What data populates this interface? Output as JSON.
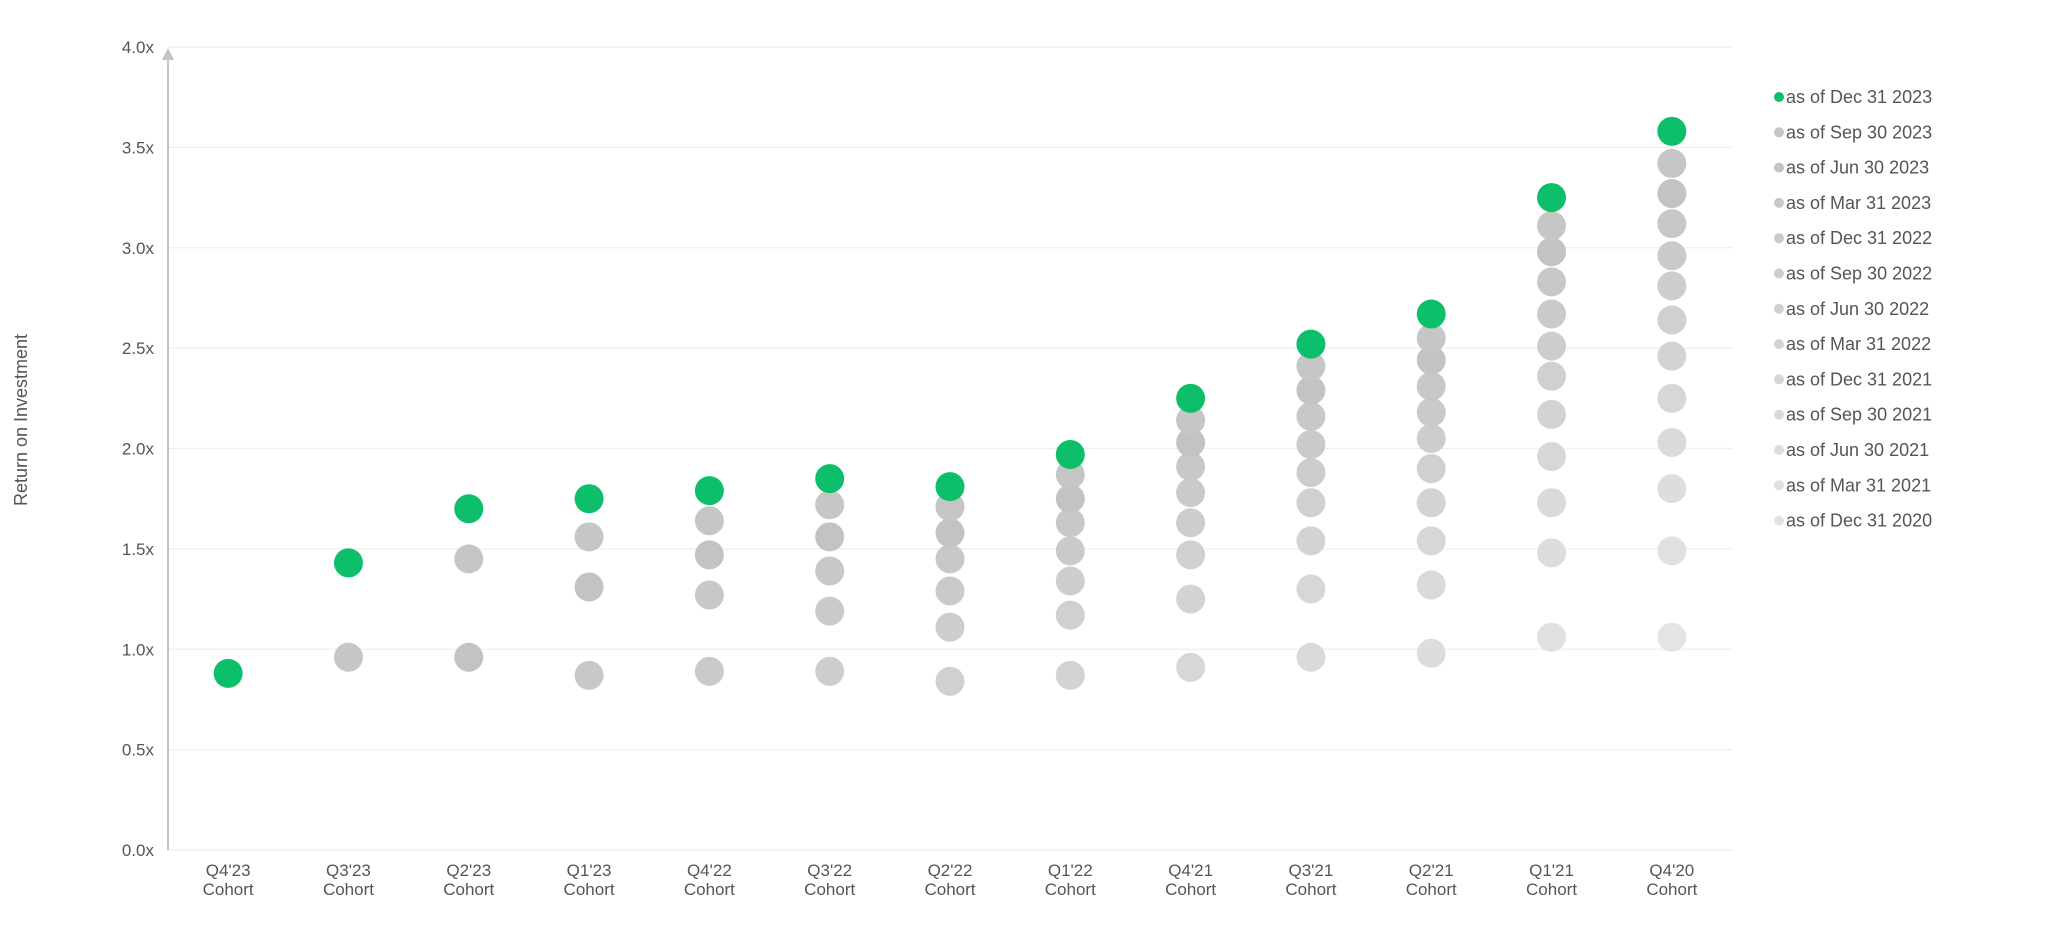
{
  "chart_data": {
    "type": "scatter",
    "ylabel": "Return on Investment",
    "ylim": [
      0,
      4
    ],
    "yticks": [
      "0.0x",
      "0.5x",
      "1.0x",
      "1.5x",
      "2.0x",
      "2.5x",
      "3.0x",
      "3.5x",
      "4.0x"
    ],
    "ytick_values": [
      0,
      0.5,
      1,
      1.5,
      2,
      2.5,
      3,
      3.5,
      4
    ],
    "grid": true,
    "legend_placement": "right",
    "categories": [
      [
        "Q4'23",
        "Cohort"
      ],
      [
        "Q3'23",
        "Cohort"
      ],
      [
        "Q2'23",
        "Cohort"
      ],
      [
        "Q1'23",
        "Cohort"
      ],
      [
        "Q4'22",
        "Cohort"
      ],
      [
        "Q3'22",
        "Cohort"
      ],
      [
        "Q2'22",
        "Cohort"
      ],
      [
        "Q1'22",
        "Cohort"
      ],
      [
        "Q4'21",
        "Cohort"
      ],
      [
        "Q3'21",
        "Cohort"
      ],
      [
        "Q2'21",
        "Cohort"
      ],
      [
        "Q1'21",
        "Cohort"
      ],
      [
        "Q4'20",
        "Cohort"
      ]
    ],
    "series": [
      {
        "name": "as of Dec 31 2023",
        "color": "#0dbf6a",
        "values": [
          0.88,
          1.43,
          1.7,
          1.75,
          1.79,
          1.85,
          1.81,
          1.97,
          2.25,
          2.52,
          2.67,
          3.25,
          3.58
        ]
      },
      {
        "name": "as of Sep 30 2023",
        "color": "#c6c6c6",
        "values": [
          null,
          0.96,
          1.45,
          1.56,
          1.64,
          1.72,
          1.71,
          1.87,
          2.14,
          2.41,
          2.55,
          3.11,
          3.42
        ]
      },
      {
        "name": "as of Jun 30 2023",
        "color": "#c3c3c3",
        "values": [
          null,
          null,
          0.96,
          1.31,
          1.47,
          1.56,
          1.58,
          1.75,
          2.03,
          2.29,
          2.44,
          2.98,
          3.27
        ]
      },
      {
        "name": "as of Mar 31 2023",
        "color": "#c8c8c8",
        "values": [
          null,
          null,
          null,
          0.87,
          1.27,
          1.39,
          1.45,
          1.63,
          1.91,
          2.16,
          2.31,
          2.83,
          3.12
        ]
      },
      {
        "name": "as of Dec 31 2022",
        "color": "#cacaca",
        "values": [
          null,
          null,
          null,
          null,
          0.89,
          1.19,
          1.29,
          1.49,
          1.78,
          2.02,
          2.18,
          2.67,
          2.96
        ]
      },
      {
        "name": "as of Sep 30 2022",
        "color": "#cdcdcd",
        "values": [
          null,
          null,
          null,
          null,
          null,
          0.89,
          1.11,
          1.34,
          1.63,
          1.88,
          2.05,
          2.51,
          2.81
        ]
      },
      {
        "name": "as of Jun 30 2022",
        "color": "#d0d0d0",
        "values": [
          null,
          null,
          null,
          null,
          null,
          null,
          0.84,
          1.17,
          1.47,
          1.73,
          1.9,
          2.36,
          2.64
        ]
      },
      {
        "name": "as of Mar 31 2022",
        "color": "#d3d3d3",
        "values": [
          null,
          null,
          null,
          null,
          null,
          null,
          null,
          0.87,
          1.25,
          1.54,
          1.73,
          2.17,
          2.46
        ]
      },
      {
        "name": "as of Dec 31 2021",
        "color": "#d7d7d7",
        "values": [
          null,
          null,
          null,
          null,
          null,
          null,
          null,
          null,
          0.91,
          1.3,
          1.54,
          1.96,
          2.25
        ]
      },
      {
        "name": "as of Sep 30 2021",
        "color": "#dadada",
        "values": [
          null,
          null,
          null,
          null,
          null,
          null,
          null,
          null,
          null,
          0.96,
          1.32,
          1.73,
          2.03
        ]
      },
      {
        "name": "as of Jun 30 2021",
        "color": "#dddddd",
        "values": [
          null,
          null,
          null,
          null,
          null,
          null,
          null,
          null,
          null,
          null,
          0.98,
          1.48,
          1.8
        ]
      },
      {
        "name": "as of Mar 31 2021",
        "color": "#e0e0e0",
        "values": [
          null,
          null,
          null,
          null,
          null,
          null,
          null,
          null,
          null,
          null,
          null,
          1.06,
          1.49
        ]
      },
      {
        "name": "as of Dec 31 2020",
        "color": "#e4e4e4",
        "values": [
          null,
          null,
          null,
          null,
          null,
          null,
          null,
          null,
          null,
          null,
          null,
          null,
          1.06
        ]
      }
    ]
  }
}
